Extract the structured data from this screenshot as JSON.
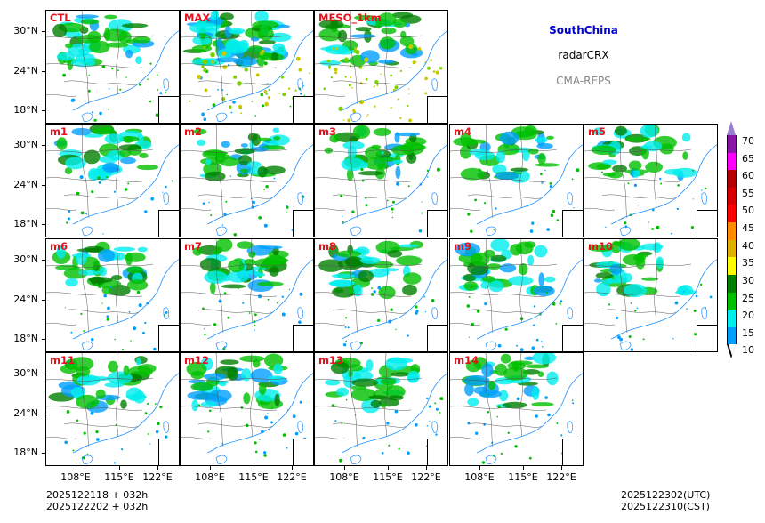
{
  "legend": {
    "region": "SouthChina",
    "variable": "radarCRX",
    "model": "CMA-REPS",
    "region_color": "#0000cc",
    "model_color": "#888888"
  },
  "panels": [
    {
      "label": "CTL"
    },
    {
      "label": "MAX"
    },
    {
      "label": "MESO_1km"
    },
    {
      "label": "m1"
    },
    {
      "label": "m2"
    },
    {
      "label": "m3"
    },
    {
      "label": "m4"
    },
    {
      "label": "m5"
    },
    {
      "label": "m6"
    },
    {
      "label": "m7"
    },
    {
      "label": "m8"
    },
    {
      "label": "m9"
    },
    {
      "label": "m10"
    },
    {
      "label": "m11"
    },
    {
      "label": "m12"
    },
    {
      "label": "m13"
    },
    {
      "label": "m14"
    }
  ],
  "axes": {
    "lat_labels": [
      "30°N",
      "24°N",
      "18°N"
    ],
    "lon_labels": [
      "108°E",
      "115°E",
      "122°E"
    ]
  },
  "colorbar": {
    "labels": [
      "70",
      "65",
      "60",
      "55",
      "50",
      "45",
      "40",
      "35",
      "30",
      "25",
      "20",
      "15",
      "10"
    ],
    "colors": [
      "#9a7fd0",
      "#8c15a8",
      "#ff00ff",
      "#b30000",
      "#d90000",
      "#ff0000",
      "#ff8c00",
      "#e0b000",
      "#ffff00",
      "#007f00",
      "#00c000",
      "#00eeee",
      "#00a0ff",
      "#ffffff"
    ]
  },
  "footer": {
    "init_line1": "2025122118  +  032h",
    "init_line2": "2025122202  +  032h",
    "valid_utc": "2025122302(UTC)",
    "valid_cst": "2025122310(CST)"
  }
}
